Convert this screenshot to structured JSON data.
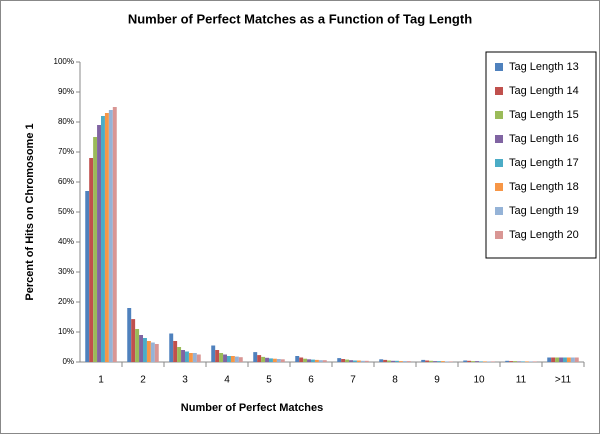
{
  "chart_data": {
    "type": "bar",
    "title": "Number of Perfect Matches as a Function of Tag Length",
    "x_label": "Number of Perfect Matches",
    "y_label": "Percent  of Hits on Chromosome 1",
    "categories": [
      "1",
      "2",
      "3",
      "4",
      "5",
      "6",
      "7",
      "8",
      "9",
      "10",
      "11",
      ">11"
    ],
    "series": [
      {
        "name": "Tag Length 13",
        "color": "#4f81bd",
        "values": [
          57,
          18,
          9.5,
          5.5,
          3.3,
          2,
          1.3,
          0.9,
          0.7,
          0.5,
          0.4,
          1.5
        ]
      },
      {
        "name": "Tag Length 14",
        "color": "#c0504d",
        "values": [
          68,
          14.3,
          7,
          4,
          2.3,
          1.5,
          1,
          0.7,
          0.5,
          0.4,
          0.3,
          1.5
        ]
      },
      {
        "name": "Tag Length 15",
        "color": "#9bbb59",
        "values": [
          75,
          11,
          5,
          3,
          1.7,
          1.1,
          0.8,
          0.5,
          0.4,
          0.3,
          0.3,
          1.5
        ]
      },
      {
        "name": "Tag Length 16",
        "color": "#8064a2",
        "values": [
          79,
          9,
          4,
          2.5,
          1.4,
          0.9,
          0.6,
          0.4,
          0.3,
          0.3,
          0.2,
          1.5
        ]
      },
      {
        "name": "Tag Length 17",
        "color": "#4bacc6",
        "values": [
          82,
          8,
          3.5,
          2,
          1.2,
          0.8,
          0.5,
          0.4,
          0.3,
          0.2,
          0.2,
          1.5
        ]
      },
      {
        "name": "Tag Length 18",
        "color": "#f79646",
        "values": [
          83,
          7,
          3,
          2,
          1.1,
          0.7,
          0.5,
          0.3,
          0.3,
          0.2,
          0.2,
          1.5
        ]
      },
      {
        "name": "Tag Length 19",
        "color": "#95b3d7",
        "values": [
          84,
          6.5,
          3,
          1.8,
          1,
          0.6,
          0.4,
          0.3,
          0.2,
          0.2,
          0.2,
          1.5
        ]
      },
      {
        "name": "Tag Length 20",
        "color": "#d99694",
        "values": [
          85,
          6,
          2.5,
          1.6,
          0.9,
          0.6,
          0.4,
          0.3,
          0.2,
          0.2,
          0.2,
          1.5
        ]
      }
    ],
    "ylim": [
      0,
      100
    ],
    "yticks": [
      {
        "value": 0,
        "label": "0%"
      },
      {
        "value": 10,
        "label": "10%"
      },
      {
        "value": 20,
        "label": "20%"
      },
      {
        "value": 30,
        "label": "30%"
      },
      {
        "value": 40,
        "label": "40%"
      },
      {
        "value": 50,
        "label": "50%"
      },
      {
        "value": 60,
        "label": "60%"
      },
      {
        "value": 70,
        "label": "70%"
      },
      {
        "value": 80,
        "label": "80%"
      },
      {
        "value": 90,
        "label": "90%"
      },
      {
        "value": 100,
        "label": "100%"
      }
    ],
    "grid": false,
    "legend": "right"
  }
}
